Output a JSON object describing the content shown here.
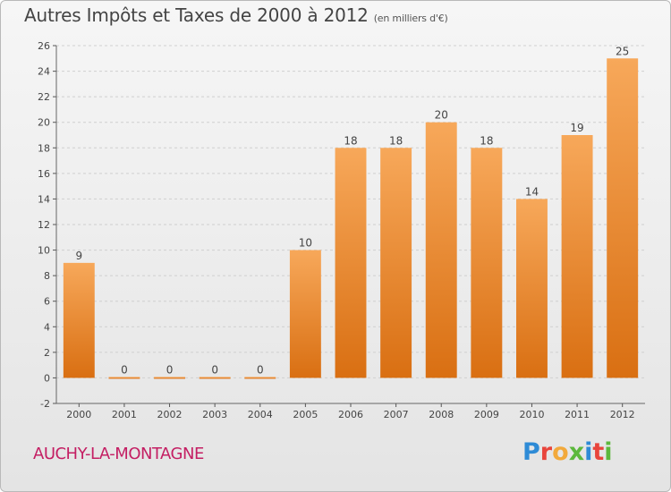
{
  "chart_data": {
    "type": "bar",
    "title": "Autres Impôts et Taxes de 2000 à 2012",
    "subtitle": "(en milliers d'€)",
    "categories": [
      "2000",
      "2001",
      "2002",
      "2003",
      "2004",
      "2005",
      "2006",
      "2007",
      "2008",
      "2009",
      "2010",
      "2011",
      "2012"
    ],
    "values": [
      9,
      0,
      0,
      0,
      0,
      10,
      18,
      18,
      20,
      18,
      14,
      19,
      25
    ],
    "xlabel": "",
    "ylabel": "",
    "ylim": [
      -2,
      26
    ],
    "yticks": [
      -2,
      0,
      2,
      4,
      6,
      8,
      10,
      12,
      14,
      16,
      18,
      20,
      22,
      24,
      26
    ],
    "grid": true,
    "legend": "none"
  },
  "footer": {
    "location": "AUCHY-LA-MONTAGNE",
    "logo_text": "Proxiti"
  },
  "colors": {
    "bar_top": "#f7a85a",
    "bar_bottom": "#d96f12",
    "grid": "#cfcfcf",
    "location": "#c41e63",
    "logo": [
      "#2e8bd6",
      "#e8453c",
      "#f2a93b",
      "#5cb83c",
      "#2e8bd6",
      "#e8453c",
      "#5cb83c"
    ]
  }
}
